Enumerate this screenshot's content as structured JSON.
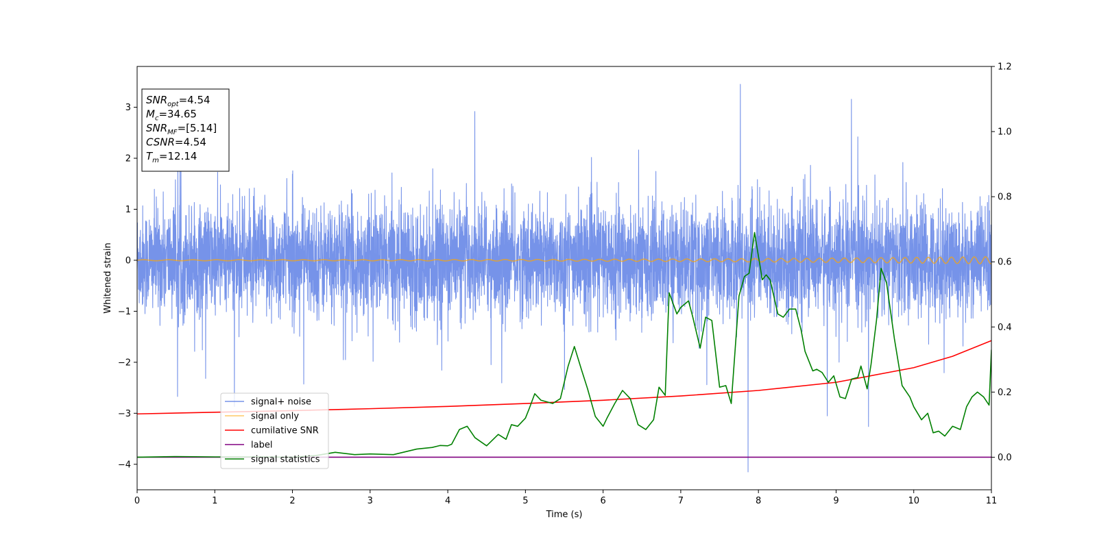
{
  "chart_data": {
    "type": "line",
    "xlabel": "Time (s)",
    "ylabel": "Whitened strain",
    "xlim": [
      0,
      11
    ],
    "ylim": [
      -4.5,
      3.8
    ],
    "ylim_right": [
      -0.1,
      1.2
    ],
    "x_ticks": [
      0,
      1,
      2,
      3,
      4,
      5,
      6,
      7,
      8,
      9,
      10,
      11
    ],
    "y_ticks": [
      -4,
      -3,
      -2,
      -1,
      0,
      1,
      2,
      3
    ],
    "y_ticks_right": [
      0.0,
      0.2,
      0.4,
      0.6,
      0.8,
      1.0,
      1.2
    ],
    "grid": false,
    "legend_position": "lower-left",
    "annotation": [
      {
        "name": "SNR",
        "sub": "opt",
        "value": "=4.54"
      },
      {
        "name": "M",
        "sub": "c",
        "value": "=34.65"
      },
      {
        "name": "SNR",
        "sub": "MF",
        "value": "=[5.14]"
      },
      {
        "name": "CSNR",
        "sub": "",
        "value": "=4.54"
      },
      {
        "name": "T",
        "sub": "m",
        "value": "=12.14"
      }
    ],
    "series": [
      {
        "name": "signal+ noise",
        "axis": "left",
        "color": "#4169e1",
        "kind": "noise",
        "envelope_approx": {
          "sigma": 0.85,
          "max": 3.45,
          "min": -4.15
        }
      },
      {
        "name": "signal only",
        "axis": "left",
        "color": "#ffa500",
        "kind": "chirp",
        "amplitude_start": 0.01,
        "amplitude_end": 0.07
      },
      {
        "name": "cumilative SNR",
        "axis": "right",
        "color": "#ff0000",
        "x": [
          0,
          1,
          2,
          3,
          4,
          5,
          6,
          7,
          8,
          9,
          10,
          10.5,
          11
        ],
        "y": [
          0.133,
          0.138,
          0.143,
          0.149,
          0.156,
          0.165,
          0.175,
          0.188,
          0.205,
          0.23,
          0.275,
          0.31,
          0.358
        ]
      },
      {
        "name": "label",
        "axis": "right",
        "color": "#800080",
        "x": [
          0,
          11
        ],
        "y": [
          0.0,
          0.0
        ]
      },
      {
        "name": "signal statistics",
        "axis": "right",
        "color": "#008000",
        "x": [
          0,
          0.5,
          1.0,
          1.5,
          2.0,
          2.3,
          2.55,
          2.8,
          3.0,
          3.3,
          3.6,
          3.8,
          3.9,
          4.0,
          4.05,
          4.15,
          4.25,
          4.35,
          4.5,
          4.65,
          4.75,
          4.82,
          4.9,
          5.0,
          5.05,
          5.12,
          5.2,
          5.35,
          5.45,
          5.55,
          5.63,
          5.72,
          5.8,
          5.9,
          6.0,
          6.05,
          6.15,
          6.25,
          6.35,
          6.45,
          6.55,
          6.65,
          6.72,
          6.8,
          6.85,
          6.95,
          7.0,
          7.1,
          7.15,
          7.25,
          7.32,
          7.4,
          7.5,
          7.58,
          7.65,
          7.75,
          7.82,
          7.88,
          7.95,
          8.05,
          8.1,
          8.15,
          8.25,
          8.32,
          8.4,
          8.48,
          8.55,
          8.6,
          8.7,
          8.75,
          8.82,
          8.9,
          8.97,
          9.05,
          9.12,
          9.2,
          9.28,
          9.32,
          9.4,
          9.45,
          9.52,
          9.58,
          9.65,
          9.75,
          9.85,
          9.95,
          10.0,
          10.1,
          10.18,
          10.25,
          10.32,
          10.4,
          10.5,
          10.6,
          10.68,
          10.75,
          10.82,
          10.9,
          10.97,
          11.0
        ],
        "y": [
          0.0,
          0.002,
          0.001,
          0.001,
          0.0,
          0.005,
          0.015,
          0.008,
          0.01,
          0.008,
          0.025,
          0.03,
          0.036,
          0.035,
          0.04,
          0.085,
          0.095,
          0.06,
          0.035,
          0.07,
          0.055,
          0.1,
          0.095,
          0.12,
          0.15,
          0.195,
          0.175,
          0.165,
          0.18,
          0.28,
          0.34,
          0.27,
          0.21,
          0.125,
          0.095,
          0.12,
          0.165,
          0.205,
          0.18,
          0.1,
          0.085,
          0.115,
          0.215,
          0.19,
          0.505,
          0.44,
          0.46,
          0.48,
          0.435,
          0.335,
          0.43,
          0.42,
          0.215,
          0.22,
          0.165,
          0.495,
          0.555,
          0.565,
          0.69,
          0.545,
          0.56,
          0.545,
          0.44,
          0.43,
          0.455,
          0.455,
          0.39,
          0.325,
          0.265,
          0.27,
          0.26,
          0.23,
          0.25,
          0.185,
          0.18,
          0.24,
          0.245,
          0.28,
          0.21,
          0.285,
          0.42,
          0.58,
          0.535,
          0.365,
          0.22,
          0.185,
          0.155,
          0.115,
          0.135,
          0.075,
          0.08,
          0.065,
          0.095,
          0.085,
          0.155,
          0.185,
          0.2,
          0.185,
          0.16,
          0.33
        ]
      }
    ]
  }
}
